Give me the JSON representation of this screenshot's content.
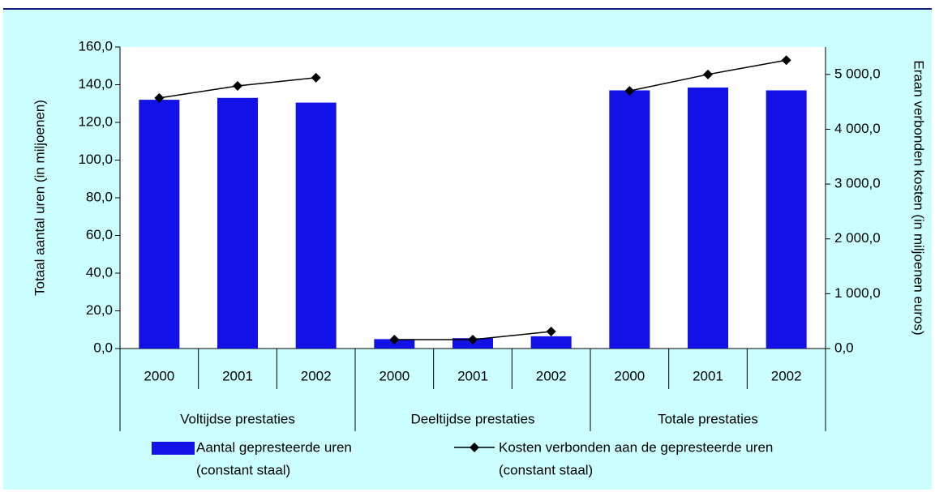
{
  "chart_data": {
    "type": "bar",
    "y_label": "Totaal aantal uren (in miljoenen)",
    "y2_label": "Eraan verbonden kosten (in miljoenen euros)",
    "groups": [
      {
        "name": "Voltijdse prestaties",
        "categories": [
          "2000",
          "2001",
          "2002"
        ]
      },
      {
        "name": "Deeltijdse prestaties",
        "categories": [
          "2000",
          "2001",
          "2002"
        ]
      },
      {
        "name": "Totale prestaties",
        "categories": [
          "2000",
          "2001",
          "2002"
        ]
      }
    ],
    "series": [
      {
        "name": "Aantal gepresteerde uren",
        "name_note": "(constant staal)",
        "type": "bar",
        "color": "#1212e6",
        "values": [
          [
            132,
            133,
            130.5
          ],
          [
            5,
            5.5,
            6.5
          ],
          [
            137,
            138.5,
            137
          ]
        ]
      },
      {
        "name": "Kosten verbonden aan de gepresteerde uren",
        "name_note": "(constant staal)",
        "type": "line",
        "color": "#000000",
        "axis": "y2",
        "values": [
          [
            4570,
            4790,
            4940
          ],
          [
            163,
            163,
            310
          ],
          [
            4700,
            5000,
            5260
          ]
        ]
      }
    ],
    "ylim": [
      0,
      160
    ],
    "yticks": [
      {
        "value": 0,
        "label": "0,0"
      },
      {
        "value": 20,
        "label": "20,0"
      },
      {
        "value": 40,
        "label": "40,0"
      },
      {
        "value": 60,
        "label": "60,0"
      },
      {
        "value": 80,
        "label": "80,0"
      },
      {
        "value": 100,
        "label": "100,0"
      },
      {
        "value": 120,
        "label": "120,0"
      },
      {
        "value": 140,
        "label": "140,0"
      },
      {
        "value": 160,
        "label": "160,0"
      }
    ],
    "y2lim": [
      0,
      5500
    ],
    "y2ticks": [
      {
        "value": 0,
        "label": "0,0"
      },
      {
        "value": 1000,
        "label": "1 000,0"
      },
      {
        "value": 2000,
        "label": "2 000,0"
      },
      {
        "value": 3000,
        "label": "3 000,0"
      },
      {
        "value": 4000,
        "label": "4 000,0"
      },
      {
        "value": 5000,
        "label": "5 000,0"
      }
    ]
  }
}
